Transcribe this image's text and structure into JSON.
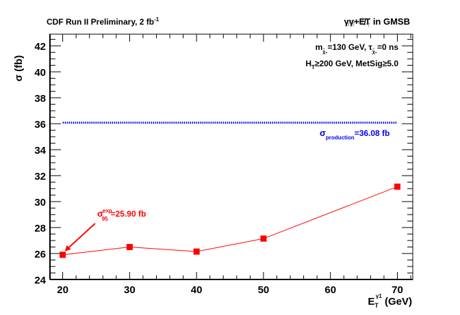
{
  "chart_data": {
    "type": "line",
    "title": "CDF Run II Preliminary, 2 fb",
    "title_superscript": "-1",
    "channel_label": "γγ+E̸T in GMSB",
    "channel_main": "γγ+E",
    "channel_sub": "T",
    "channel_suffix": " in GMSB",
    "params_line1": {
      "m": "m",
      "m_sub": "χ̃₀",
      "m_val": "=130 GeV, ",
      "tau": "τ",
      "tau_sub": "χ̃₀",
      "tau_val": "=0 ns"
    },
    "params_line2": {
      "h": "H",
      "h_sub": "T",
      "rest": "≥200 GeV, MetSig≥5.0"
    },
    "xlabel": {
      "main": "E",
      "sub": "T",
      "sup": "γ1",
      "unit": " (GeV)"
    },
    "ylabel": "σ (fb)",
    "xlim": [
      18.1,
      72.3
    ],
    "ylim": [
      24,
      42.9
    ],
    "x_ticks": [
      20,
      30,
      40,
      50,
      60,
      70
    ],
    "x_tick_labels": [
      "20",
      "30",
      "40",
      "50",
      "60",
      "70"
    ],
    "y_ticks": [
      24,
      26,
      28,
      30,
      32,
      34,
      36,
      38,
      40,
      42
    ],
    "y_tick_labels": [
      "24",
      "26",
      "28",
      "30",
      "32",
      "34",
      "36",
      "38",
      "40",
      "42"
    ],
    "series": [
      {
        "name": "expected limit",
        "color": "#ff0000",
        "x": [
          20,
          30,
          40,
          50,
          70
        ],
        "values": [
          25.9,
          26.5,
          26.15,
          27.15,
          31.15
        ]
      },
      {
        "name": "production cross section",
        "color": "#0000ee",
        "x": [
          20,
          70
        ],
        "values": [
          36.08,
          36.08
        ],
        "style": "dotted"
      }
    ],
    "annotations": {
      "expected": {
        "sigma": "σ",
        "sup": "exp",
        "sub": "95",
        "value": "=25.90 fb",
        "arrow_to": [
          20,
          25.9
        ]
      },
      "production": {
        "sigma": "σ",
        "sub": "production",
        "value": "=36.08 fb"
      }
    },
    "grid": false
  }
}
